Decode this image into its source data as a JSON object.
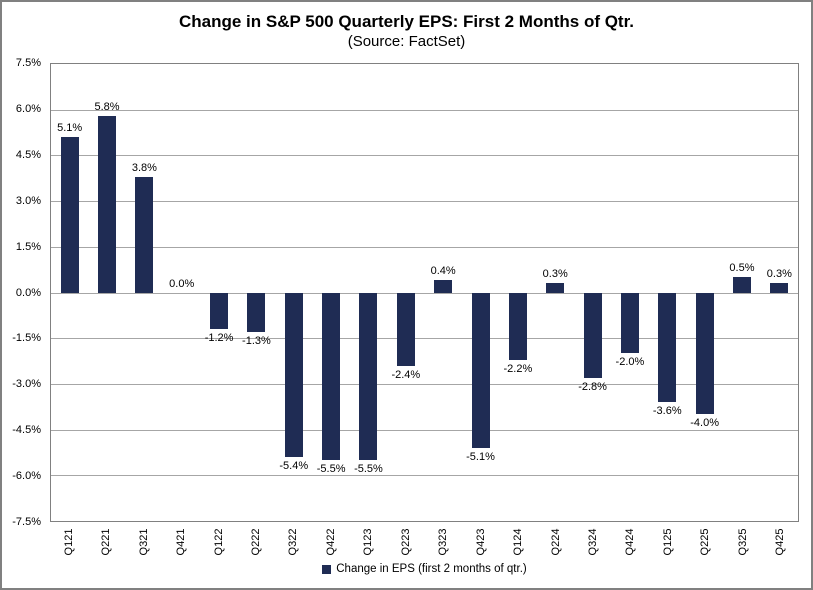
{
  "title": "Change in S&P 500 Quarterly EPS: First 2 Months of Qtr.",
  "subtitle": "(Source: FactSet)",
  "legend": {
    "label": "Change in EPS (first 2 months of qtr.)"
  },
  "colors": {
    "bar": "#1F2C54",
    "grid": "#A6A6A6",
    "plot_border": "#808080"
  },
  "chart_data": {
    "type": "bar",
    "title": "Change in S&P 500 Quarterly EPS: First 2 Months of Qtr.",
    "subtitle": "(Source: FactSet)",
    "categories": [
      "Q121",
      "Q221",
      "Q321",
      "Q421",
      "Q122",
      "Q222",
      "Q322",
      "Q422",
      "Q123",
      "Q223",
      "Q323",
      "Q423",
      "Q124",
      "Q224",
      "Q324",
      "Q424",
      "Q125",
      "Q225",
      "Q325",
      "Q425"
    ],
    "values": [
      5.1,
      5.8,
      3.8,
      0.0,
      -1.2,
      -1.3,
      -5.4,
      -5.5,
      -5.5,
      -2.4,
      0.4,
      -5.1,
      -2.2,
      0.3,
      -2.8,
      -2.0,
      -3.6,
      -4.0,
      0.5,
      0.3
    ],
    "labels": [
      "5.1%",
      "5.8%",
      "3.8%",
      "0.0%",
      "-1.2%",
      "-1.3%",
      "-5.4%",
      "-5.5%",
      "-5.5%",
      "-2.4%",
      "0.4%",
      "-5.1%",
      "-2.2%",
      "0.3%",
      "-2.8%",
      "-2.0%",
      "-3.6%",
      "-4.0%",
      "0.5%",
      "0.3%"
    ],
    "xlabel": "",
    "ylabel": "",
    "ylim": [
      -7.5,
      7.5
    ],
    "yticks": [
      7.5,
      6.0,
      4.5,
      3.0,
      1.5,
      0.0,
      -1.5,
      -3.0,
      -4.5,
      -6.0,
      -7.5
    ],
    "ytick_labels": [
      "7.5%",
      "6.0%",
      "4.5%",
      "3.0%",
      "1.5%",
      "0.0%",
      "-1.5%",
      "-3.0%",
      "-4.5%",
      "-6.0%",
      "-7.5%"
    ],
    "grid": true,
    "legend_position": "bottom",
    "legend_entries": [
      "Change in EPS (first 2 months of qtr.)"
    ]
  }
}
